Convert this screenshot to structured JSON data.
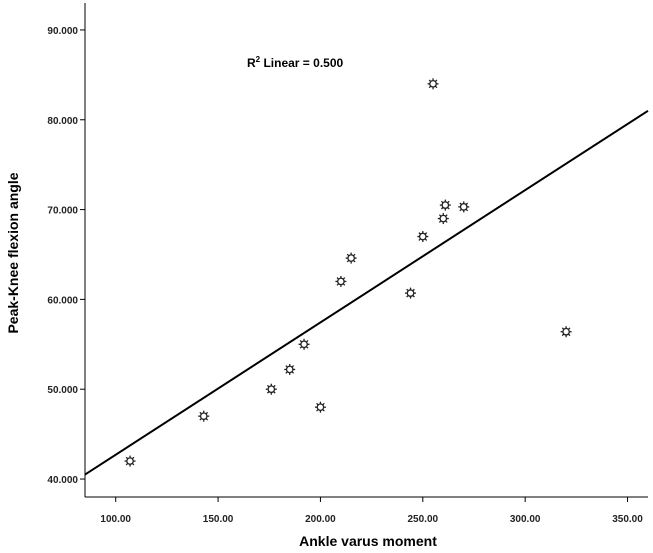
{
  "chart_data": {
    "type": "scatter",
    "xlabel": "Ankle varus moment",
    "ylabel": "Peak-Knee flexion angle",
    "xlim": [
      85,
      360
    ],
    "ylim": [
      38,
      93
    ],
    "x_ticks": [
      100,
      150,
      200,
      250,
      300,
      350
    ],
    "x_tick_labels": [
      "100.00",
      "150.00",
      "200.00",
      "250.00",
      "300.00",
      "350.00"
    ],
    "y_ticks": [
      40,
      50,
      60,
      70,
      80,
      90
    ],
    "y_tick_labels": [
      "40.000",
      "50.000",
      "60.000",
      "70.000",
      "80.000",
      "90.000"
    ],
    "grid": false,
    "points": [
      {
        "x": 107,
        "y": 42.0
      },
      {
        "x": 143,
        "y": 47.0
      },
      {
        "x": 176,
        "y": 50.0
      },
      {
        "x": 185,
        "y": 52.2
      },
      {
        "x": 192,
        "y": 55.0
      },
      {
        "x": 200,
        "y": 48.0
      },
      {
        "x": 210,
        "y": 62.0
      },
      {
        "x": 215,
        "y": 64.6
      },
      {
        "x": 244,
        "y": 60.7
      },
      {
        "x": 250,
        "y": 67.0
      },
      {
        "x": 255,
        "y": 84.0
      },
      {
        "x": 260,
        "y": 69.0
      },
      {
        "x": 261,
        "y": 70.5
      },
      {
        "x": 270,
        "y": 70.3
      },
      {
        "x": 320,
        "y": 56.4
      }
    ],
    "fit_line": {
      "x": [
        85,
        360
      ],
      "y": [
        40.5,
        81.0
      ]
    },
    "annotation": {
      "prefix": "R",
      "superscript": "2",
      "text": " Linear = 0.500"
    }
  }
}
